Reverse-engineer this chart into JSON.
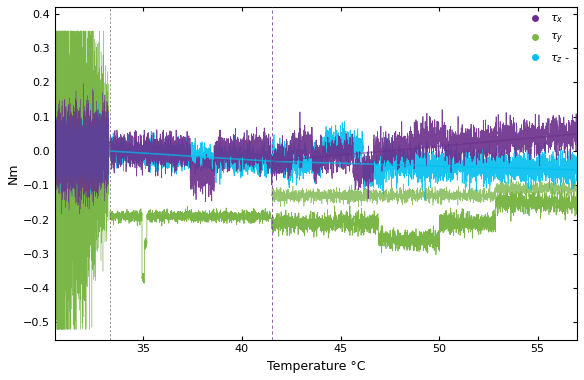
{
  "xlim": [
    30.5,
    57
  ],
  "ylim": [
    -0.55,
    0.42
  ],
  "xlabel": "Temperature °C",
  "ylabel": "Nm",
  "xticks": [
    35,
    40,
    45,
    50,
    55
  ],
  "yticks": [
    -0.5,
    -0.4,
    -0.3,
    -0.2,
    -0.1,
    0.0,
    0.1,
    0.2,
    0.3,
    0.4
  ],
  "color_tx": "#6B2D8B",
  "color_ty": "#7AB648",
  "color_tz": "#00BFEF",
  "color_tz_smooth": "#00BFEF",
  "color_tx_smooth": "#6B2D8B",
  "vline1_x": 33.3,
  "vline2_x": 41.5,
  "vline1_color": "#9B50CC",
  "vline2_color": "#9B50CC",
  "seed": 7
}
